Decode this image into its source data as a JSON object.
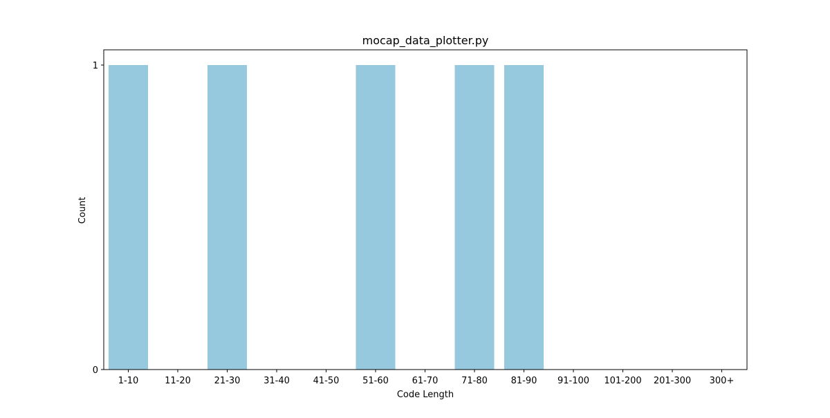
{
  "chart_data": {
    "type": "bar",
    "title": "mocap_data_plotter.py",
    "xlabel": "Code Length",
    "ylabel": "Count",
    "categories": [
      "1-10",
      "11-20",
      "21-30",
      "31-40",
      "41-50",
      "51-60",
      "61-70",
      "71-80",
      "81-90",
      "91-100",
      "101-200",
      "201-300",
      "300+"
    ],
    "values": [
      1,
      0,
      1,
      0,
      0,
      1,
      0,
      1,
      1,
      0,
      0,
      0,
      0
    ],
    "yticks": [
      "0",
      "1"
    ],
    "ylim": [
      0,
      1.05
    ],
    "grid": false,
    "bar_color": "#96c9de"
  }
}
